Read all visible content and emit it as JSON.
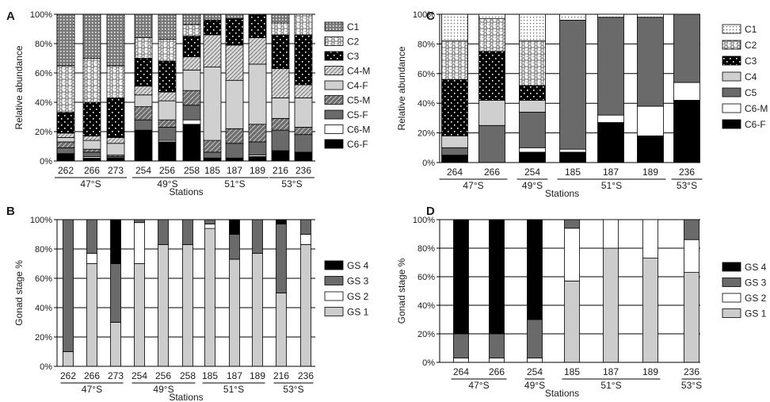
{
  "colors": {
    "C1": "#8a8a8a",
    "C2": "#ffffff",
    "C3": "#000000",
    "C4-M": "#c8c8c8",
    "C4-F": "#d0d0d0",
    "C5-M": "#6e6e6e",
    "C5-F": "#6a6a6a",
    "C6-M": "#ffffff",
    "C6-F": "#000000",
    "C4": "#cfcfcf",
    "C5": "#6a6a6a",
    "GS 1": "#cccccc",
    "GS 2": "#ffffff",
    "GS 3": "#6a6a6a",
    "GS 4": "#000000"
  },
  "chart_data": [
    {
      "panel": "A",
      "type": "bar",
      "stacked": true,
      "ylabel": "Relative abundance",
      "xlabel": "Stations",
      "yticks": [
        "0%",
        "20%",
        "40%",
        "60%",
        "80%",
        "100%"
      ],
      "ylim": [
        0,
        100
      ],
      "grid": true,
      "legend_position": "right",
      "categories": [
        "262",
        "266",
        "273",
        "254",
        "256",
        "258",
        "185",
        "187",
        "189",
        "216",
        "236"
      ],
      "groups": [
        {
          "label": "47°S",
          "from": 0,
          "to": 2
        },
        {
          "label": "49°S",
          "from": 3,
          "to": 5
        },
        {
          "label": "51°S",
          "from": 6,
          "to": 8
        },
        {
          "label": "53°S",
          "from": 9,
          "to": 10
        }
      ],
      "series": [
        {
          "name": "C6-F",
          "values": [
            5,
            2,
            2,
            21,
            13,
            25,
            2,
            2,
            3,
            7,
            6
          ]
        },
        {
          "name": "C6-M",
          "values": [
            0,
            1,
            0,
            0,
            1,
            3,
            0,
            0,
            1,
            0,
            0
          ]
        },
        {
          "name": "C5-F",
          "values": [
            4,
            3,
            1,
            7,
            9,
            10,
            4,
            10,
            9,
            14,
            12
          ]
        },
        {
          "name": "C5-M",
          "values": [
            4,
            2,
            1,
            9,
            5,
            10,
            8,
            10,
            12,
            8,
            5
          ]
        },
        {
          "name": "C4-F",
          "values": [
            3,
            6,
            8,
            8,
            13,
            14,
            50,
            33,
            41,
            14,
            20
          ]
        },
        {
          "name": "C4-M",
          "values": [
            3,
            3,
            4,
            6,
            6,
            9,
            22,
            24,
            18,
            20,
            9
          ]
        },
        {
          "name": "C3",
          "values": [
            14,
            23,
            27,
            19,
            21,
            14,
            10,
            18,
            16,
            23,
            34
          ]
        },
        {
          "name": "C2",
          "values": [
            32,
            30,
            22,
            14,
            15,
            8,
            0,
            0,
            0,
            8,
            14
          ]
        },
        {
          "name": "C1",
          "values": [
            35,
            30,
            35,
            16,
            17,
            7,
            4,
            3,
            0,
            6,
            0
          ]
        }
      ]
    },
    {
      "panel": "C",
      "type": "bar",
      "stacked": true,
      "ylabel": "Relative abundance",
      "xlabel": "Stations",
      "yticks": [
        "0%",
        "20%",
        "40%",
        "60%",
        "80%",
        "100%"
      ],
      "ylim": [
        0,
        100
      ],
      "grid": true,
      "legend_position": "right",
      "categories": [
        "264",
        "266",
        "254",
        "185",
        "187",
        "189",
        "236"
      ],
      "groups": [
        {
          "label": "47°S",
          "from": 0,
          "to": 1
        },
        {
          "label": "49°S",
          "from": 2,
          "to": 2
        },
        {
          "label": "51°S",
          "from": 3,
          "to": 5
        },
        {
          "label": "53°S",
          "from": 6,
          "to": 6
        }
      ],
      "series": [
        {
          "name": "C6-F",
          "values": [
            5,
            0,
            7,
            7,
            27,
            18,
            42
          ]
        },
        {
          "name": "C6-M",
          "values": [
            0,
            0,
            3,
            2,
            5,
            20,
            12
          ]
        },
        {
          "name": "C5",
          "values": [
            5,
            25,
            24,
            87,
            66,
            60,
            46
          ]
        },
        {
          "name": "C4",
          "values": [
            8,
            17,
            8,
            0,
            0,
            0,
            0
          ]
        },
        {
          "name": "C3",
          "values": [
            38,
            33,
            10,
            0,
            0,
            0,
            0
          ]
        },
        {
          "name": "C2",
          "values": [
            26,
            22,
            30,
            0,
            0,
            0,
            0
          ]
        },
        {
          "name": "C1",
          "values": [
            18,
            3,
            18,
            4,
            2,
            2,
            0
          ]
        }
      ]
    },
    {
      "panel": "B",
      "type": "bar",
      "stacked": true,
      "ylabel": "Gonad stage %",
      "xlabel": "Stations",
      "yticks": [
        "0%",
        "20%",
        "40%",
        "60%",
        "80%",
        "100%"
      ],
      "ylim": [
        0,
        100
      ],
      "grid": true,
      "legend_position": "right",
      "categories": [
        "262",
        "266",
        "273",
        "254",
        "256",
        "258",
        "185",
        "187",
        "189",
        "216",
        "236"
      ],
      "groups": [
        {
          "label": "47°S",
          "from": 0,
          "to": 2
        },
        {
          "label": "49°S",
          "from": 3,
          "to": 5
        },
        {
          "label": "51°S",
          "from": 6,
          "to": 8
        },
        {
          "label": "53°S",
          "from": 9,
          "to": 10
        }
      ],
      "series": [
        {
          "name": "GS 1",
          "values": [
            10,
            70,
            30,
            70,
            83,
            83,
            94,
            73,
            77,
            50,
            83
          ]
        },
        {
          "name": "GS 2",
          "values": [
            0,
            7,
            0,
            28,
            0,
            0,
            3,
            0,
            0,
            0,
            7
          ]
        },
        {
          "name": "GS 3",
          "values": [
            90,
            23,
            40,
            2,
            17,
            17,
            3,
            17,
            23,
            47,
            10
          ]
        },
        {
          "name": "GS 4",
          "values": [
            0,
            0,
            30,
            0,
            0,
            0,
            0,
            10,
            0,
            3,
            0
          ]
        }
      ]
    },
    {
      "panel": "D",
      "type": "bar",
      "stacked": true,
      "ylabel": "Gonad stage %",
      "xlabel": "Stations",
      "yticks": [
        "0%",
        "20%",
        "40%",
        "60%",
        "80%",
        "100%"
      ],
      "ylim": [
        0,
        100
      ],
      "grid": true,
      "legend_position": "right",
      "categories": [
        "264",
        "266",
        "254",
        "185",
        "187",
        "189",
        "236"
      ],
      "groups": [
        {
          "label": "47°S",
          "from": 0,
          "to": 1
        },
        {
          "label": "49°S",
          "from": 2,
          "to": 2
        },
        {
          "label": "51°S",
          "from": 3,
          "to": 5
        },
        {
          "label": "53°S",
          "from": 6,
          "to": 6
        }
      ],
      "series": [
        {
          "name": "GS 1",
          "values": [
            0,
            0,
            0,
            57,
            80,
            73,
            63
          ]
        },
        {
          "name": "GS 2",
          "values": [
            3,
            3,
            3,
            37,
            20,
            27,
            23
          ]
        },
        {
          "name": "GS 3",
          "values": [
            17,
            17,
            27,
            6,
            0,
            0,
            14
          ]
        },
        {
          "name": "GS 4",
          "values": [
            80,
            80,
            70,
            0,
            0,
            0,
            0
          ]
        }
      ]
    }
  ]
}
